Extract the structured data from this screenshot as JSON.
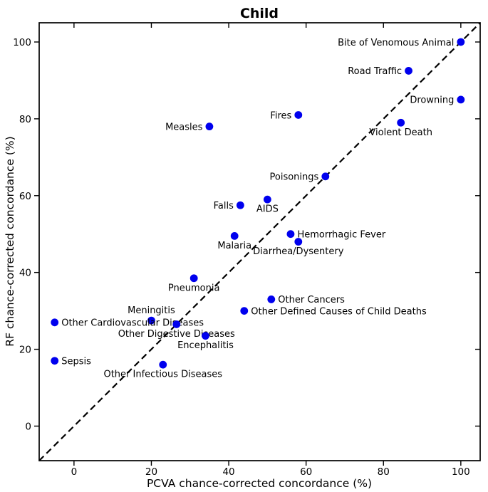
{
  "chart_data": {
    "type": "scatter",
    "title": "Child",
    "xlabel": "PCVA chance-corrected concordance (%)",
    "ylabel": "RF chance-corrected concordance (%)",
    "xlim": [
      -9,
      105
    ],
    "ylim": [
      -9,
      105
    ],
    "xticks": [
      0,
      20,
      40,
      60,
      80,
      100
    ],
    "yticks": [
      0,
      20,
      40,
      60,
      80,
      100
    ],
    "grid": false,
    "legend": "none",
    "background_color": "#ffffff",
    "axis_color": "#000000",
    "marker_color": "#0000ee",
    "marker_shape": "circle",
    "identity_line": {
      "type": "dashed",
      "color": "#000000",
      "from_xy": -9,
      "to_xy": 105,
      "meaning": "y = x reference line"
    },
    "points": [
      {
        "label": "Bite of Venomous Animal",
        "x": 100,
        "y": 100,
        "label_side": "left"
      },
      {
        "label": "Road Traffic",
        "x": 86.5,
        "y": 92.5,
        "label_side": "left"
      },
      {
        "label": "Drowning",
        "x": 100,
        "y": 85,
        "label_side": "left"
      },
      {
        "label": "Fires",
        "x": 58,
        "y": 81,
        "label_side": "left"
      },
      {
        "label": "Violent Death",
        "x": 84.5,
        "y": 79,
        "label_side": "below"
      },
      {
        "label": "Measles",
        "x": 35,
        "y": 78,
        "label_side": "left"
      },
      {
        "label": "Poisonings",
        "x": 65,
        "y": 65,
        "label_side": "left"
      },
      {
        "label": "AIDS",
        "x": 50,
        "y": 59,
        "label_side": "below"
      },
      {
        "label": "Falls",
        "x": 43,
        "y": 57.5,
        "label_side": "left"
      },
      {
        "label": "Hemorrhagic Fever",
        "x": 56,
        "y": 50,
        "label_side": "right"
      },
      {
        "label": "Malaria",
        "x": 41.5,
        "y": 49.5,
        "label_side": "below"
      },
      {
        "label": "Diarrhea/Dysentery",
        "x": 58,
        "y": 48,
        "label_side": "below"
      },
      {
        "label": "Pneumonia",
        "x": 31,
        "y": 38.5,
        "label_side": "below"
      },
      {
        "label": "Other Cancers",
        "x": 51,
        "y": 33,
        "label_side": "right"
      },
      {
        "label": "Other Defined Causes of Child Deaths",
        "x": 44,
        "y": 30,
        "label_side": "right"
      },
      {
        "label": "Meningitis",
        "x": 20,
        "y": 27.5,
        "label_side": "above"
      },
      {
        "label": "Other Cardiovascular Diseases",
        "x": -5,
        "y": 27,
        "label_side": "right"
      },
      {
        "label": "Other Digestive Diseases",
        "x": 26.5,
        "y": 26.5,
        "label_side": "below"
      },
      {
        "label": "Encephalitis",
        "x": 34,
        "y": 23.5,
        "label_side": "below"
      },
      {
        "label": "Sepsis",
        "x": -5,
        "y": 17,
        "label_side": "right"
      },
      {
        "label": "Other Infectious Diseases",
        "x": 23,
        "y": 16,
        "label_side": "below"
      }
    ]
  }
}
